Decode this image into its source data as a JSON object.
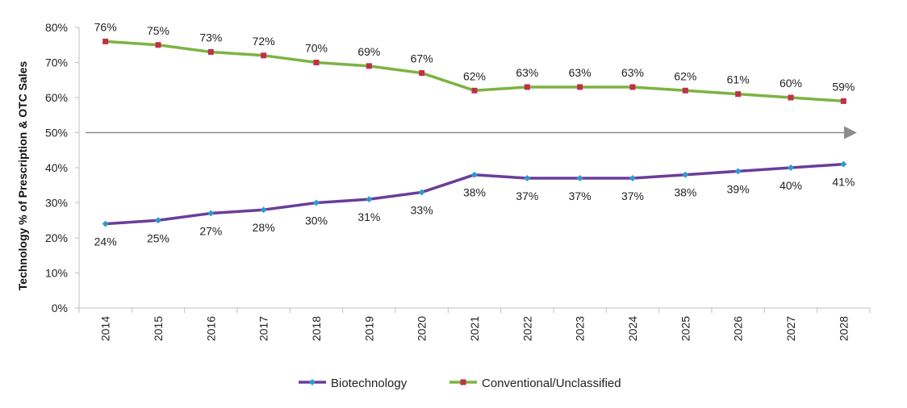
{
  "chart_data": {
    "type": "line",
    "title": "",
    "xlabel": "",
    "ylabel": "Technology % of Prescription & OTC Sales",
    "ylim": [
      0,
      80
    ],
    "yticks": [
      "0%",
      "10%",
      "20%",
      "30%",
      "40%",
      "50%",
      "60%",
      "70%",
      "80%"
    ],
    "ytick_values": [
      0,
      10,
      20,
      30,
      40,
      50,
      60,
      70,
      80
    ],
    "categories": [
      "2014",
      "2015",
      "2016",
      "2017",
      "2018",
      "2019",
      "2020",
      "2021",
      "2022",
      "2023",
      "2024",
      "2025",
      "2026",
      "2027",
      "2028"
    ],
    "series": [
      {
        "name": "Biotechnology",
        "color": "#6a3d9a",
        "marker_color": "#2e9ad0",
        "marker": "diamond",
        "values": [
          24,
          25,
          27,
          28,
          30,
          31,
          33,
          38,
          37,
          37,
          37,
          38,
          39,
          40,
          41
        ],
        "labels": [
          "24%",
          "25%",
          "27%",
          "28%",
          "30%",
          "31%",
          "33%",
          "38%",
          "37%",
          "37%",
          "37%",
          "38%",
          "39%",
          "40%",
          "41%"
        ],
        "label_position": "below"
      },
      {
        "name": "Conventional/Unclassified",
        "color": "#7cb342",
        "marker_color": "#c0304a",
        "marker": "square",
        "values": [
          76,
          75,
          73,
          72,
          70,
          69,
          67,
          62,
          63,
          63,
          63,
          62,
          61,
          60,
          59
        ],
        "labels": [
          "76%",
          "75%",
          "73%",
          "72%",
          "70%",
          "69%",
          "67%",
          "62%",
          "63%",
          "63%",
          "63%",
          "62%",
          "61%",
          "60%",
          "59%"
        ],
        "label_position": "above"
      }
    ],
    "reference_arrow": {
      "value": 50,
      "color": "#8c8c8c"
    },
    "legend_position": "bottom-center",
    "grid": false
  }
}
